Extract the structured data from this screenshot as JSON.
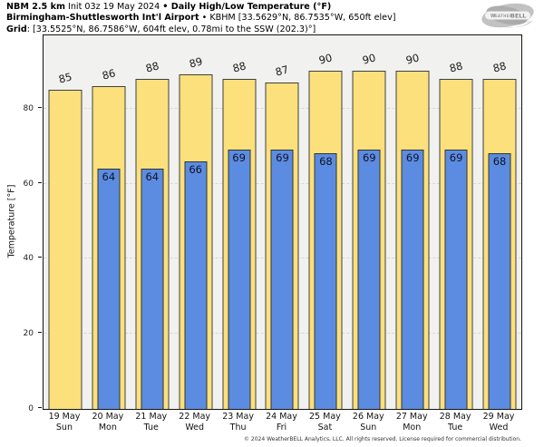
{
  "header": {
    "model": "NBM 2.5 km",
    "init": " Init 03z 19 May 2024 ",
    "product": "• Daily High/Low Temperature (°F)",
    "station_name": "Birmingham-Shuttlesworth Int'l Airport",
    "station_meta": " • KBHM [33.5629°N, 86.7535°W, 650ft elev]",
    "grid_label": "Grid",
    "grid_meta": ": [33.5525°N, 86.7586°W, 604ft elev, 0.78mi to the SSW (202.3)°]"
  },
  "logo": {
    "brand_small": "Weather",
    "brand_big": "BELL",
    "brand_sub": "Analytics LLC"
  },
  "chart_data": {
    "type": "bar",
    "title": "Daily High/Low Temperature (°F)",
    "categories": [
      {
        "date": "19 May",
        "day": "Sun"
      },
      {
        "date": "20 May",
        "day": "Mon"
      },
      {
        "date": "21 May",
        "day": "Tue"
      },
      {
        "date": "22 May",
        "day": "Wed"
      },
      {
        "date": "23 May",
        "day": "Thu"
      },
      {
        "date": "24 May",
        "day": "Fri"
      },
      {
        "date": "25 May",
        "day": "Sat"
      },
      {
        "date": "26 May",
        "day": "Sun"
      },
      {
        "date": "27 May",
        "day": "Mon"
      },
      {
        "date": "28 May",
        "day": "Tue"
      },
      {
        "date": "29 May",
        "day": "Wed"
      }
    ],
    "series": [
      {
        "name": "Daily High",
        "color": "#fbe07c",
        "values": [
          85,
          86,
          88,
          89,
          88,
          87,
          90,
          90,
          90,
          88,
          88
        ]
      },
      {
        "name": "Daily Low",
        "color": "#5c8ce1",
        "values": [
          null,
          64,
          64,
          66,
          69,
          69,
          68,
          69,
          69,
          69,
          68
        ]
      }
    ],
    "xlabel": "",
    "ylabel": "Temperature [°F]",
    "yticks": [
      0,
      20,
      40,
      60,
      80
    ],
    "ylim": [
      0,
      99.5
    ],
    "grid": "horizontal-dashed",
    "legend": "none",
    "plot_bg": "#f1f1f0"
  },
  "footer": "© 2024 WeatherBELL Analytics, LLC. All rights reserved. License required for commercial distribution."
}
